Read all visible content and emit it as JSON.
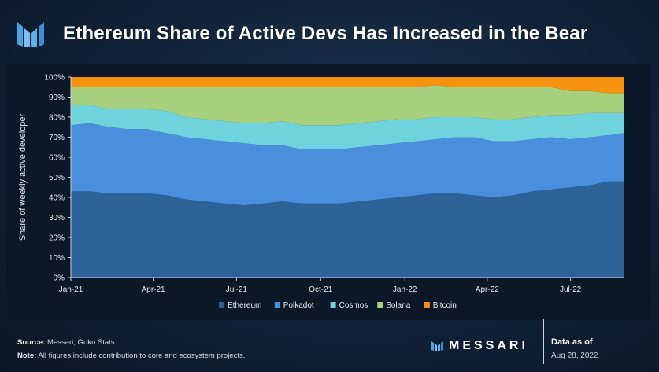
{
  "header": {
    "title": "Ethereum Share of Active Devs Has Increased in the Bear"
  },
  "footer": {
    "source_label": "Source:",
    "source_text": "Messari, Goku Stats",
    "note_label": "Note:",
    "note_text": "All figures include contribution to core and ecosystem projects.",
    "brand": "MESSARI",
    "asof_label": "Data as of",
    "asof_date": "Aug 28, 2022"
  },
  "colors": {
    "Ethereum": "#2d6299",
    "Polkadot": "#4a8fde",
    "Cosmos": "#6ed3dd",
    "Solana": "#a6cf7e",
    "Bitcoin": "#f7930e"
  },
  "chart_data": {
    "type": "area",
    "stacked": true,
    "title": "",
    "xlabel": "",
    "ylabel": "Share of weekly active developer",
    "ylim": [
      0,
      100
    ],
    "y_unit": "%",
    "yticks": [
      "0%",
      "10%",
      "20%",
      "30%",
      "40%",
      "50%",
      "60%",
      "70%",
      "80%",
      "90%",
      "100%"
    ],
    "xlim": [
      "2021-01-01",
      "2022-08-28"
    ],
    "xticks": [
      {
        "label": "Jan-21",
        "date": "2021-01-01"
      },
      {
        "label": "Apr-21",
        "date": "2021-04-01"
      },
      {
        "label": "Jul-21",
        "date": "2021-07-01"
      },
      {
        "label": "Oct-21",
        "date": "2021-10-01"
      },
      {
        "label": "Jan-22",
        "date": "2022-01-01"
      },
      {
        "label": "Apr-22",
        "date": "2022-04-01"
      },
      {
        "label": "Jul-22",
        "date": "2022-07-01"
      }
    ],
    "legend_position": "bottom",
    "x": [
      "2021-01-01",
      "2021-01-22",
      "2021-02-12",
      "2021-03-05",
      "2021-03-26",
      "2021-04-16",
      "2021-05-07",
      "2021-05-28",
      "2021-06-18",
      "2021-07-09",
      "2021-07-30",
      "2021-08-20",
      "2021-09-10",
      "2021-10-01",
      "2021-10-22",
      "2021-11-12",
      "2021-12-03",
      "2021-12-24",
      "2022-01-14",
      "2022-02-04",
      "2022-02-25",
      "2022-03-18",
      "2022-04-08",
      "2022-04-29",
      "2022-05-20",
      "2022-06-10",
      "2022-07-01",
      "2022-07-22",
      "2022-08-12",
      "2022-08-28"
    ],
    "series": [
      {
        "name": "Ethereum",
        "values": [
          43,
          43,
          42,
          42,
          42,
          41,
          39,
          38,
          37,
          36,
          37,
          38,
          37,
          37,
          37,
          38,
          39,
          40,
          41,
          42,
          42,
          41,
          40,
          41,
          43,
          44,
          45,
          46,
          48,
          48
        ]
      },
      {
        "name": "Polkadot",
        "values": [
          33,
          34,
          33,
          32,
          32,
          31,
          31,
          31,
          31,
          31,
          29,
          28,
          27,
          27,
          27,
          27,
          27,
          27,
          27,
          27,
          28,
          29,
          28,
          27,
          26,
          26,
          24,
          24,
          23,
          24
        ]
      },
      {
        "name": "Cosmos",
        "values": [
          10,
          9,
          9,
          10,
          10,
          11,
          10,
          10,
          10,
          10,
          11,
          12,
          12,
          12,
          12,
          12,
          12,
          12,
          11,
          11,
          10,
          10,
          11,
          11,
          11,
          11,
          12,
          12,
          11,
          10
        ]
      },
      {
        "name": "Solana",
        "values": [
          9,
          9,
          11,
          11,
          11,
          12,
          15,
          16,
          17,
          18,
          18,
          17,
          19,
          19,
          19,
          18,
          17,
          16,
          16,
          16,
          15,
          15,
          16,
          16,
          15,
          14,
          12,
          11,
          10,
          10
        ]
      },
      {
        "name": "Bitcoin",
        "values": [
          5,
          5,
          5,
          5,
          5,
          5,
          5,
          5,
          5,
          5,
          5,
          5,
          5,
          5,
          5,
          5,
          5,
          5,
          5,
          4,
          5,
          5,
          5,
          5,
          5,
          5,
          7,
          7,
          8,
          8
        ]
      }
    ]
  }
}
